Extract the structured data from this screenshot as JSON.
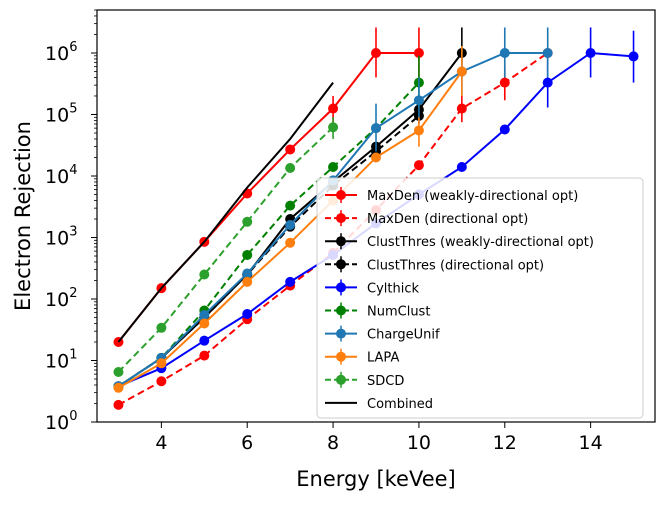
{
  "chart_data": {
    "type": "line",
    "title": "",
    "xlabel": "Energy [keVee]",
    "ylabel": "Electron Rejection",
    "xlim": [
      2.5,
      15.5
    ],
    "ylim": [
      1,
      5000000
    ],
    "yscale": "log",
    "grid": false,
    "legend_position": "lower-right",
    "x_ticks": [
      {
        "value": 4,
        "label": "4"
      },
      {
        "value": 6,
        "label": "6"
      },
      {
        "value": 8,
        "label": "8"
      },
      {
        "value": 10,
        "label": "10"
      },
      {
        "value": 12,
        "label": "12"
      },
      {
        "value": 14,
        "label": "14"
      }
    ],
    "y_ticks": [
      {
        "value": 1,
        "base": "10",
        "exp": "0"
      },
      {
        "value": 10,
        "base": "10",
        "exp": "1"
      },
      {
        "value": 100,
        "base": "10",
        "exp": "2"
      },
      {
        "value": 1000,
        "base": "10",
        "exp": "3"
      },
      {
        "value": 10000,
        "base": "10",
        "exp": "4"
      },
      {
        "value": 100000,
        "base": "10",
        "exp": "5"
      },
      {
        "value": 1000000,
        "base": "10",
        "exp": "6"
      }
    ],
    "series": [
      {
        "name": "MaxDen (weakly-directional opt)",
        "color": "#ff0000",
        "dashed": false,
        "markers": true,
        "x": [
          3,
          4,
          5,
          6,
          7,
          8,
          9,
          10
        ],
        "y": [
          20,
          150,
          850,
          5200,
          27000,
          125000,
          1000000,
          1000000
        ],
        "errors": [
          null,
          null,
          null,
          null,
          null,
          [
            75000,
            200000
          ],
          [
            400000,
            2600000
          ],
          [
            400000,
            2600000
          ]
        ]
      },
      {
        "name": "MaxDen (directional opt)",
        "color": "#ff0000",
        "dashed": true,
        "markers": true,
        "x": [
          3,
          4,
          5,
          6,
          7,
          8,
          9,
          10,
          11,
          12,
          13
        ],
        "y": [
          1.9,
          4.6,
          12,
          47,
          165,
          560,
          2800,
          15000,
          125000,
          330000,
          1000000
        ],
        "errors": [
          null,
          null,
          null,
          null,
          null,
          null,
          null,
          null,
          [
            75000,
            200000
          ],
          [
            170000,
            620000
          ],
          null
        ]
      },
      {
        "name": "ClustThres (weakly-directional opt)",
        "color": "#000000",
        "dashed": false,
        "markers": true,
        "x": [
          3,
          4,
          5,
          6,
          7,
          8,
          9,
          10,
          11
        ],
        "y": [
          3.8,
          11,
          50,
          250,
          2000,
          8000,
          30000,
          120000,
          1000000
        ],
        "errors": [
          null,
          null,
          null,
          null,
          null,
          null,
          null,
          null,
          [
            400000,
            2600000
          ]
        ]
      },
      {
        "name": "ClustThres (directional opt)",
        "color": "#000000",
        "dashed": true,
        "markers": true,
        "x": [
          3,
          4,
          5,
          6,
          7,
          8,
          9,
          10
        ],
        "y": [
          3.8,
          11,
          50,
          250,
          1500,
          7000,
          25000,
          95000
        ],
        "errors": [
          null,
          null,
          null,
          null,
          null,
          null,
          null,
          null
        ]
      },
      {
        "name": "Cylthick",
        "color": "#0000ff",
        "dashed": false,
        "markers": true,
        "x": [
          3,
          4,
          5,
          6,
          7,
          8,
          9,
          10,
          11,
          12,
          13,
          14,
          15
        ],
        "y": [
          3.8,
          7.5,
          21,
          57,
          190,
          520,
          1700,
          5000,
          14000,
          57000,
          330000,
          1000000,
          880000
        ],
        "errors": [
          null,
          null,
          null,
          null,
          null,
          null,
          null,
          null,
          null,
          null,
          [
            130000,
            900000
          ],
          [
            400000,
            2600000
          ],
          [
            330000,
            2300000
          ]
        ]
      },
      {
        "name": "NumClust",
        "color": "#008000",
        "dashed": true,
        "markers": true,
        "x": [
          3,
          4,
          5,
          6,
          7,
          8,
          9,
          10
        ],
        "y": [
          3.8,
          11,
          65,
          520,
          3300,
          14000,
          60000,
          330000
        ],
        "errors": [
          null,
          null,
          null,
          null,
          null,
          null,
          null,
          [
            130000,
            900000
          ]
        ]
      },
      {
        "name": "ChargeUnif",
        "color": "#1f77b4",
        "dashed": false,
        "markers": true,
        "x": [
          3,
          4,
          5,
          6,
          7,
          8,
          9,
          10,
          11,
          12,
          13
        ],
        "y": [
          3.8,
          11,
          55,
          260,
          1600,
          8500,
          60000,
          170000,
          500000,
          1000000,
          1000000
        ],
        "errors": [
          null,
          null,
          null,
          null,
          null,
          null,
          [
            25000,
            150000
          ],
          [
            70000,
            400000
          ],
          [
            200000,
            1300000
          ],
          [
            400000,
            2600000
          ],
          [
            400000,
            2600000
          ]
        ]
      },
      {
        "name": "LAPA",
        "color": "#ff7f0e",
        "dashed": false,
        "markers": true,
        "x": [
          3,
          4,
          5,
          6,
          7,
          8,
          9,
          10,
          11
        ],
        "y": [
          3.6,
          9,
          40,
          190,
          820,
          4000,
          20000,
          55000,
          500000
        ],
        "errors": [
          null,
          null,
          null,
          null,
          null,
          null,
          null,
          [
            30000,
            90000
          ],
          [
            200000,
            1300000
          ]
        ]
      },
      {
        "name": "SDCD",
        "color": "#2ca02c",
        "dashed": true,
        "markers": true,
        "x": [
          3,
          4,
          5,
          6,
          7,
          8
        ],
        "y": [
          6.5,
          34,
          250,
          1800,
          13500,
          62000
        ],
        "errors": [
          null,
          null,
          null,
          null,
          null,
          [
            40000,
            90000
          ]
        ]
      },
      {
        "name": "Combined",
        "color": "#000000",
        "dashed": false,
        "markers": false,
        "x": [
          3,
          4,
          5,
          6,
          7,
          8
        ],
        "y": [
          20,
          150,
          850,
          6500,
          40000,
          330000
        ],
        "errors": [
          null,
          null,
          null,
          null,
          null,
          null
        ]
      }
    ]
  }
}
